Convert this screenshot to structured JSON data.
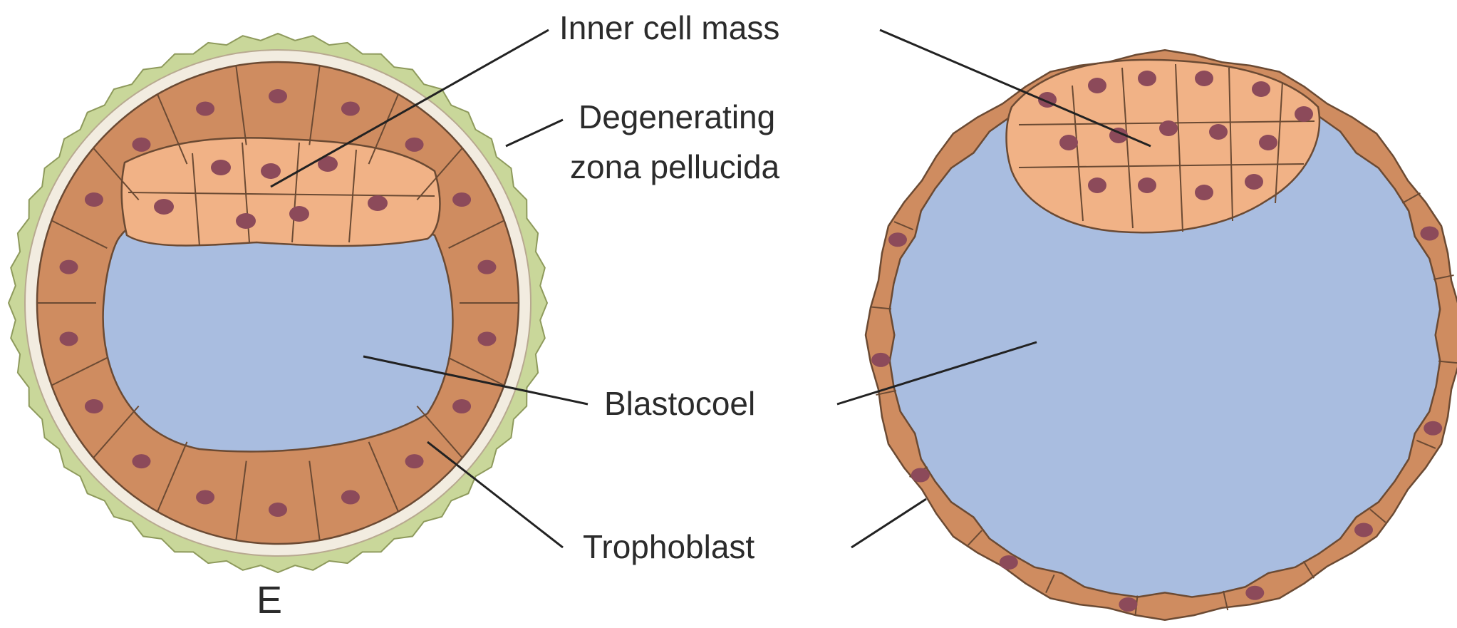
{
  "labels": {
    "inner_cell_mass": "Inner cell mass",
    "zona_line1": "Degenerating",
    "zona_line2": "zona pellucida",
    "blastocoel": "Blastocoel",
    "trophoblast": "Trophoblast"
  },
  "panel_letter": "E",
  "colors": {
    "blastocoel": "#a9bde0",
    "trophoblast": "#cf8c60",
    "inner_cell_mass": "#f1b286",
    "nucleus": "#8c4a5a",
    "zona_pellucida": "#f2ece0",
    "zona_outer": "#c9d79a",
    "outline": "#6b4a33"
  }
}
